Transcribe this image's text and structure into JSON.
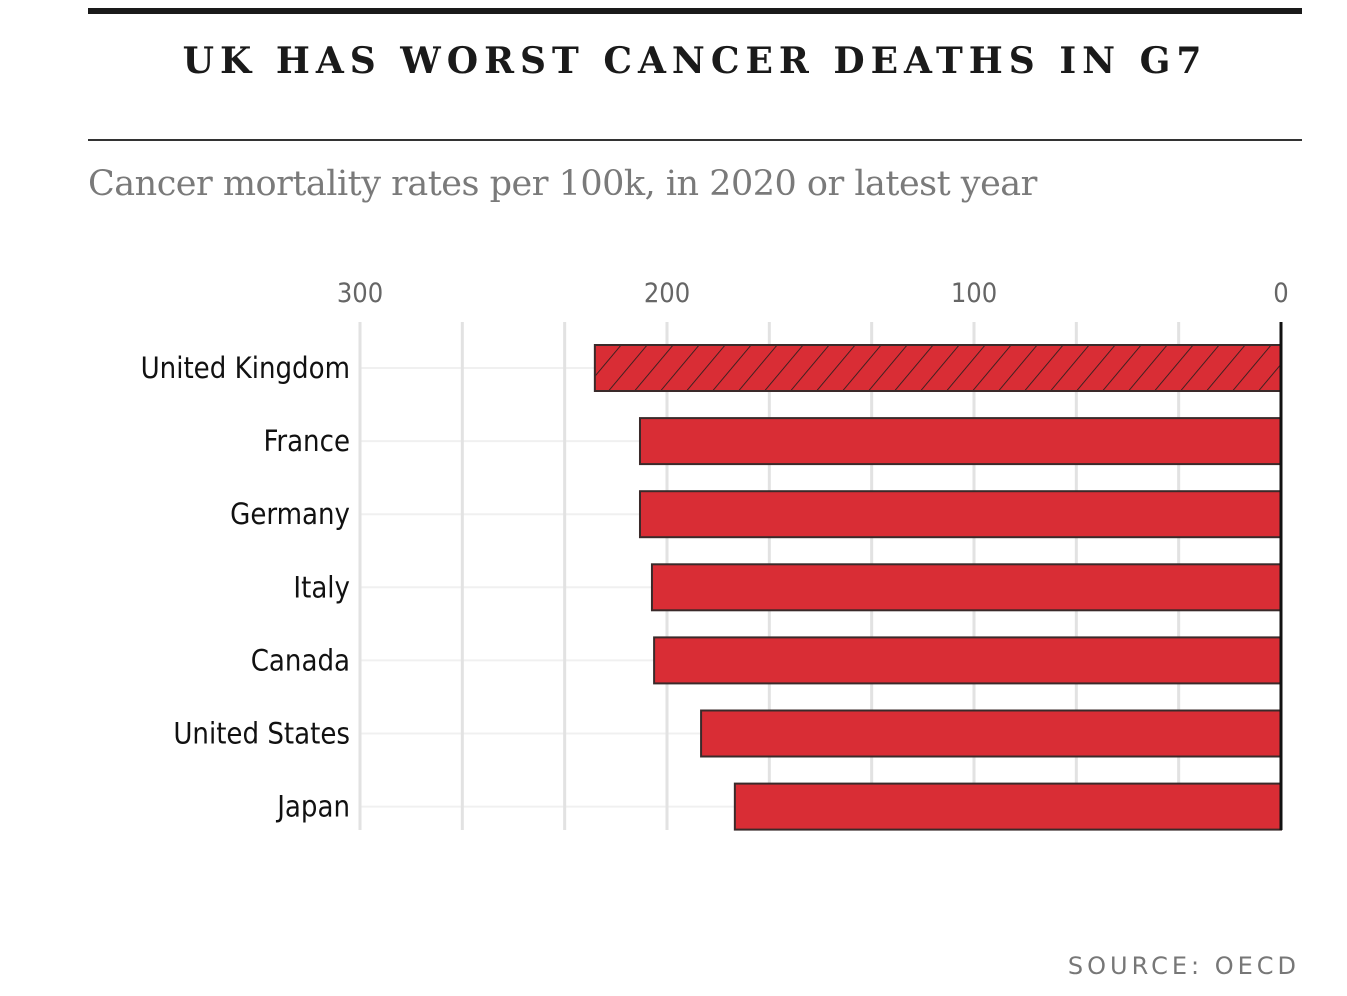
{
  "chart_data": {
    "type": "bar",
    "orientation": "horizontal",
    "x_direction": "reversed",
    "title": "UK HAS WORST CANCER DEATHS IN G7",
    "subtitle": "Cancer mortality rates per 100k, in 2020 or latest year",
    "categories": [
      "United Kingdom",
      "France",
      "Germany",
      "Italy",
      "Canada",
      "United States",
      "Japan"
    ],
    "values": [
      223.5,
      208.8,
      208.8,
      204.9,
      204.2,
      188.9,
      177.9
    ],
    "highlight": "United Kingdom",
    "xlim": [
      0,
      300
    ],
    "xticks": [
      300,
      200,
      100,
      0
    ],
    "xtick_labels": [
      "300",
      "200",
      "100",
      "0"
    ],
    "grid": true,
    "xlabel": "",
    "ylabel": "",
    "source": "SOURCE: OECD",
    "colors": {
      "bar": "#d92d35",
      "edge": "#3a2a2a",
      "grid": "#e2e2e2"
    }
  }
}
